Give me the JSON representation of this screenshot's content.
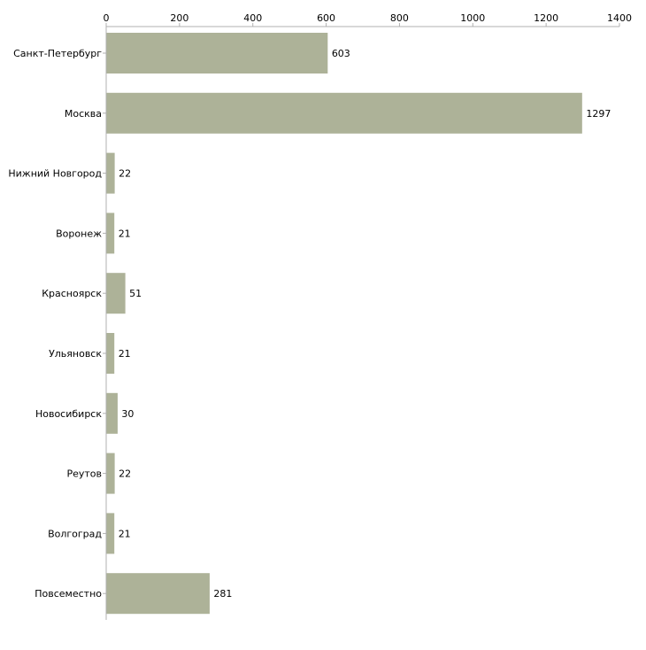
{
  "chart_data": {
    "type": "bar",
    "orientation": "horizontal",
    "title": "",
    "xlabel": "",
    "ylabel": "",
    "xlim": [
      0,
      1400
    ],
    "ticks": [
      0,
      200,
      400,
      600,
      800,
      1000,
      1200,
      1400
    ],
    "tick_labels": [
      "0",
      "200",
      "400",
      "600",
      "800",
      "1000",
      "1200",
      "1400"
    ],
    "axis_position": "top",
    "grid": false,
    "bar_color": "#adb298",
    "axis_color": "#b0b0b0",
    "categories": [
      "Санкт-Петербург",
      "Москва",
      "Нижний Новгород",
      "Воронеж",
      "Красноярск",
      "Ульяновск",
      "Новосибирск",
      "Реутов",
      "Волгоград",
      "Повсеместно"
    ],
    "values": [
      603,
      1297,
      22,
      21,
      51,
      21,
      30,
      22,
      21,
      281
    ],
    "value_labels": [
      "603",
      "1297",
      "22",
      "21",
      "51",
      "21",
      "30",
      "22",
      "21",
      "281"
    ]
  }
}
